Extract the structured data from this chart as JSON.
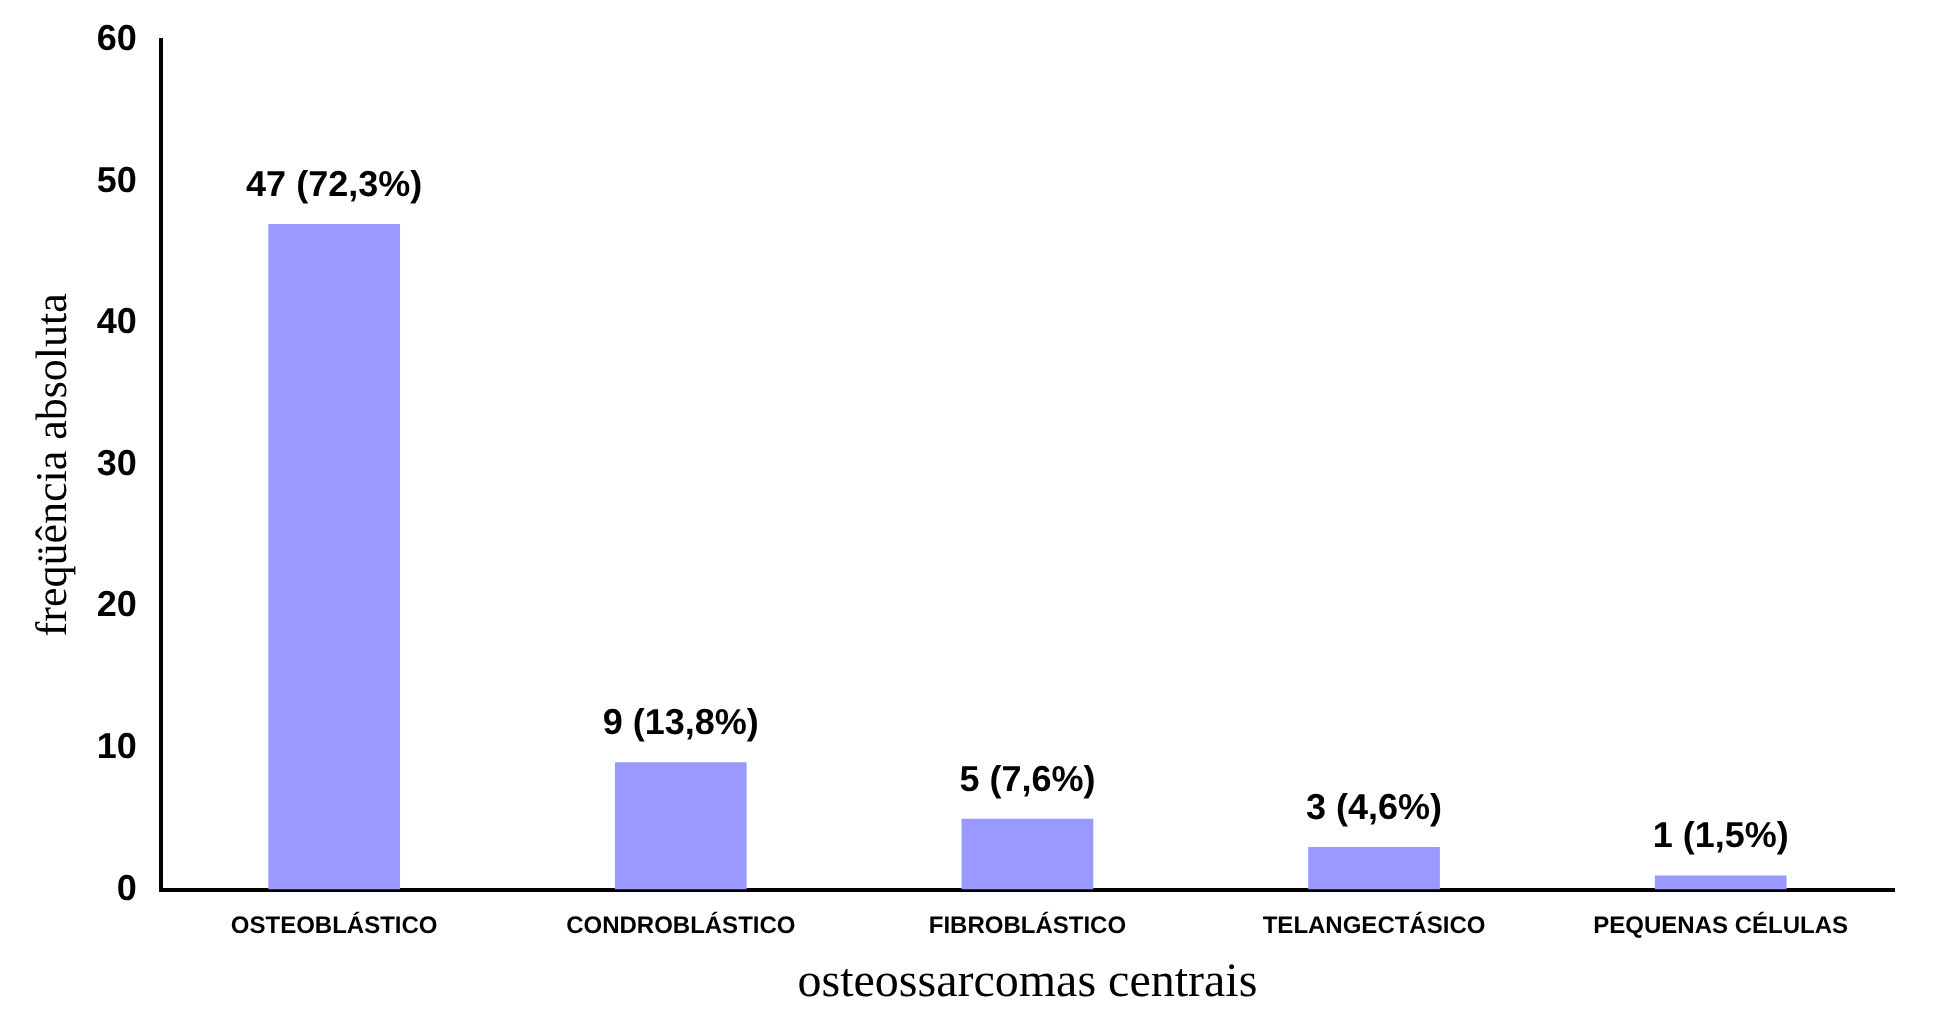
{
  "chart_data": {
    "type": "bar",
    "xlabel": "osteossarcomas centrais",
    "ylabel": "freqüência absoluta",
    "categories": [
      "OSTEOBLÁSTICO",
      "CONDROBLÁSTICO",
      "FIBROBLÁSTICO",
      "TELANGECTÁSICO",
      "PEQUENAS CÉLULAS"
    ],
    "values": [
      47,
      9,
      5,
      3,
      1
    ],
    "value_labels": [
      "47 (72,3%)",
      "9 (13,8%)",
      "5 (7,6%)",
      "3 (4,6%)",
      "1 (1,5%)"
    ],
    "color": "#9999ff",
    "ylim": [
      0,
      60
    ],
    "yticks": [
      0,
      10,
      20,
      30,
      40,
      50,
      60
    ],
    "grid": false,
    "legend": false
  }
}
